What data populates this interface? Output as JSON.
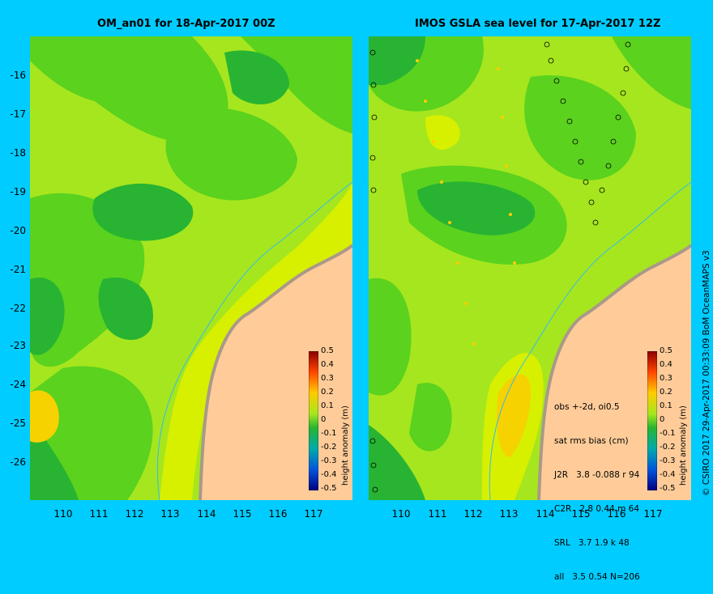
{
  "left_panel": {
    "title": "OM_an01 for 18-Apr-2017 00Z"
  },
  "right_panel": {
    "title": "IMOS GSLA sea level  for 17-Apr-2017 12Z",
    "stats": {
      "header": "obs +-2d, oi0.5",
      "subheader": "sat rms bias (cm)",
      "rows": [
        "J2R   3.8 -0.088 r 94",
        "C2R   2.8 0.44 m 64",
        "SRL   3.7 1.9 k 48",
        "all   3.5 0.54 N=206"
      ]
    }
  },
  "y_ticks": [
    "-16",
    "-17",
    "-18",
    "-19",
    "-20",
    "-21",
    "-22",
    "-23",
    "-24",
    "-25",
    "-26"
  ],
  "x_ticks": [
    "110",
    "111",
    "112",
    "113",
    "114",
    "115",
    "116",
    "117"
  ],
  "colorbar": {
    "title": "height anomaly (m)",
    "labels": [
      "0.5",
      "0.4",
      "0.3",
      "0.2",
      "0.1",
      "0",
      "-0.1",
      "-0.2",
      "-0.3",
      "-0.4",
      "-0.5"
    ]
  },
  "credit": "© CSIRO 2017   29-Apr-2017 00:33:09 BoM OceanMAPS v3",
  "colors": {
    "background": "#00ccff",
    "land": "#ffcc99",
    "coast": "#aa9988",
    "yellow_green": "#a6e61e",
    "green": "#5ad21e",
    "dark_green": "#28b432",
    "yellow": "#d7f000",
    "orange_yellow": "#f5d200"
  }
}
